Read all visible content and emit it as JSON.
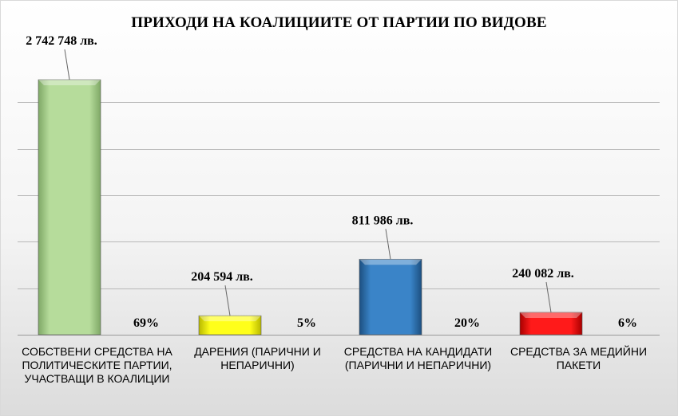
{
  "chart_data": {
    "type": "bar",
    "title": "ПРИХОДИ НА КОАЛИЦИИТЕ ОТ ПАРТИИ ПО ВИДОВЕ",
    "xlabel": "",
    "ylabel": "",
    "ylim": [
      0,
      3000000
    ],
    "grid": true,
    "legend": "none",
    "categories": [
      "СОБСТВЕНИ СРЕДСТВА НА ПОЛИТИЧЕСКИТЕ ПАРТИИ, УЧАСТВАЩИ В КОАЛИЦИИ",
      "ДАРЕНИЯ (ПАРИЧНИ И НЕПАРИЧНИ)",
      "СРЕДСТВА НА КАНДИДАТИ (ПАРИЧНИ И НЕПАРИЧНИ)",
      "СРЕДСТВА ЗА МЕДИЙНИ ПАКЕТИ"
    ],
    "values": [
      2742748,
      204594,
      811986,
      240082
    ],
    "value_labels": [
      "2 742 748 лв.",
      "204 594 лв.",
      "811 986 лв.",
      "240 082 лв."
    ],
    "percent_labels": [
      "69%",
      "5%",
      "20%",
      "6%"
    ],
    "colors": [
      "#a9d08e",
      "#ffff00",
      "#2e75b6",
      "#ff0000"
    ]
  }
}
